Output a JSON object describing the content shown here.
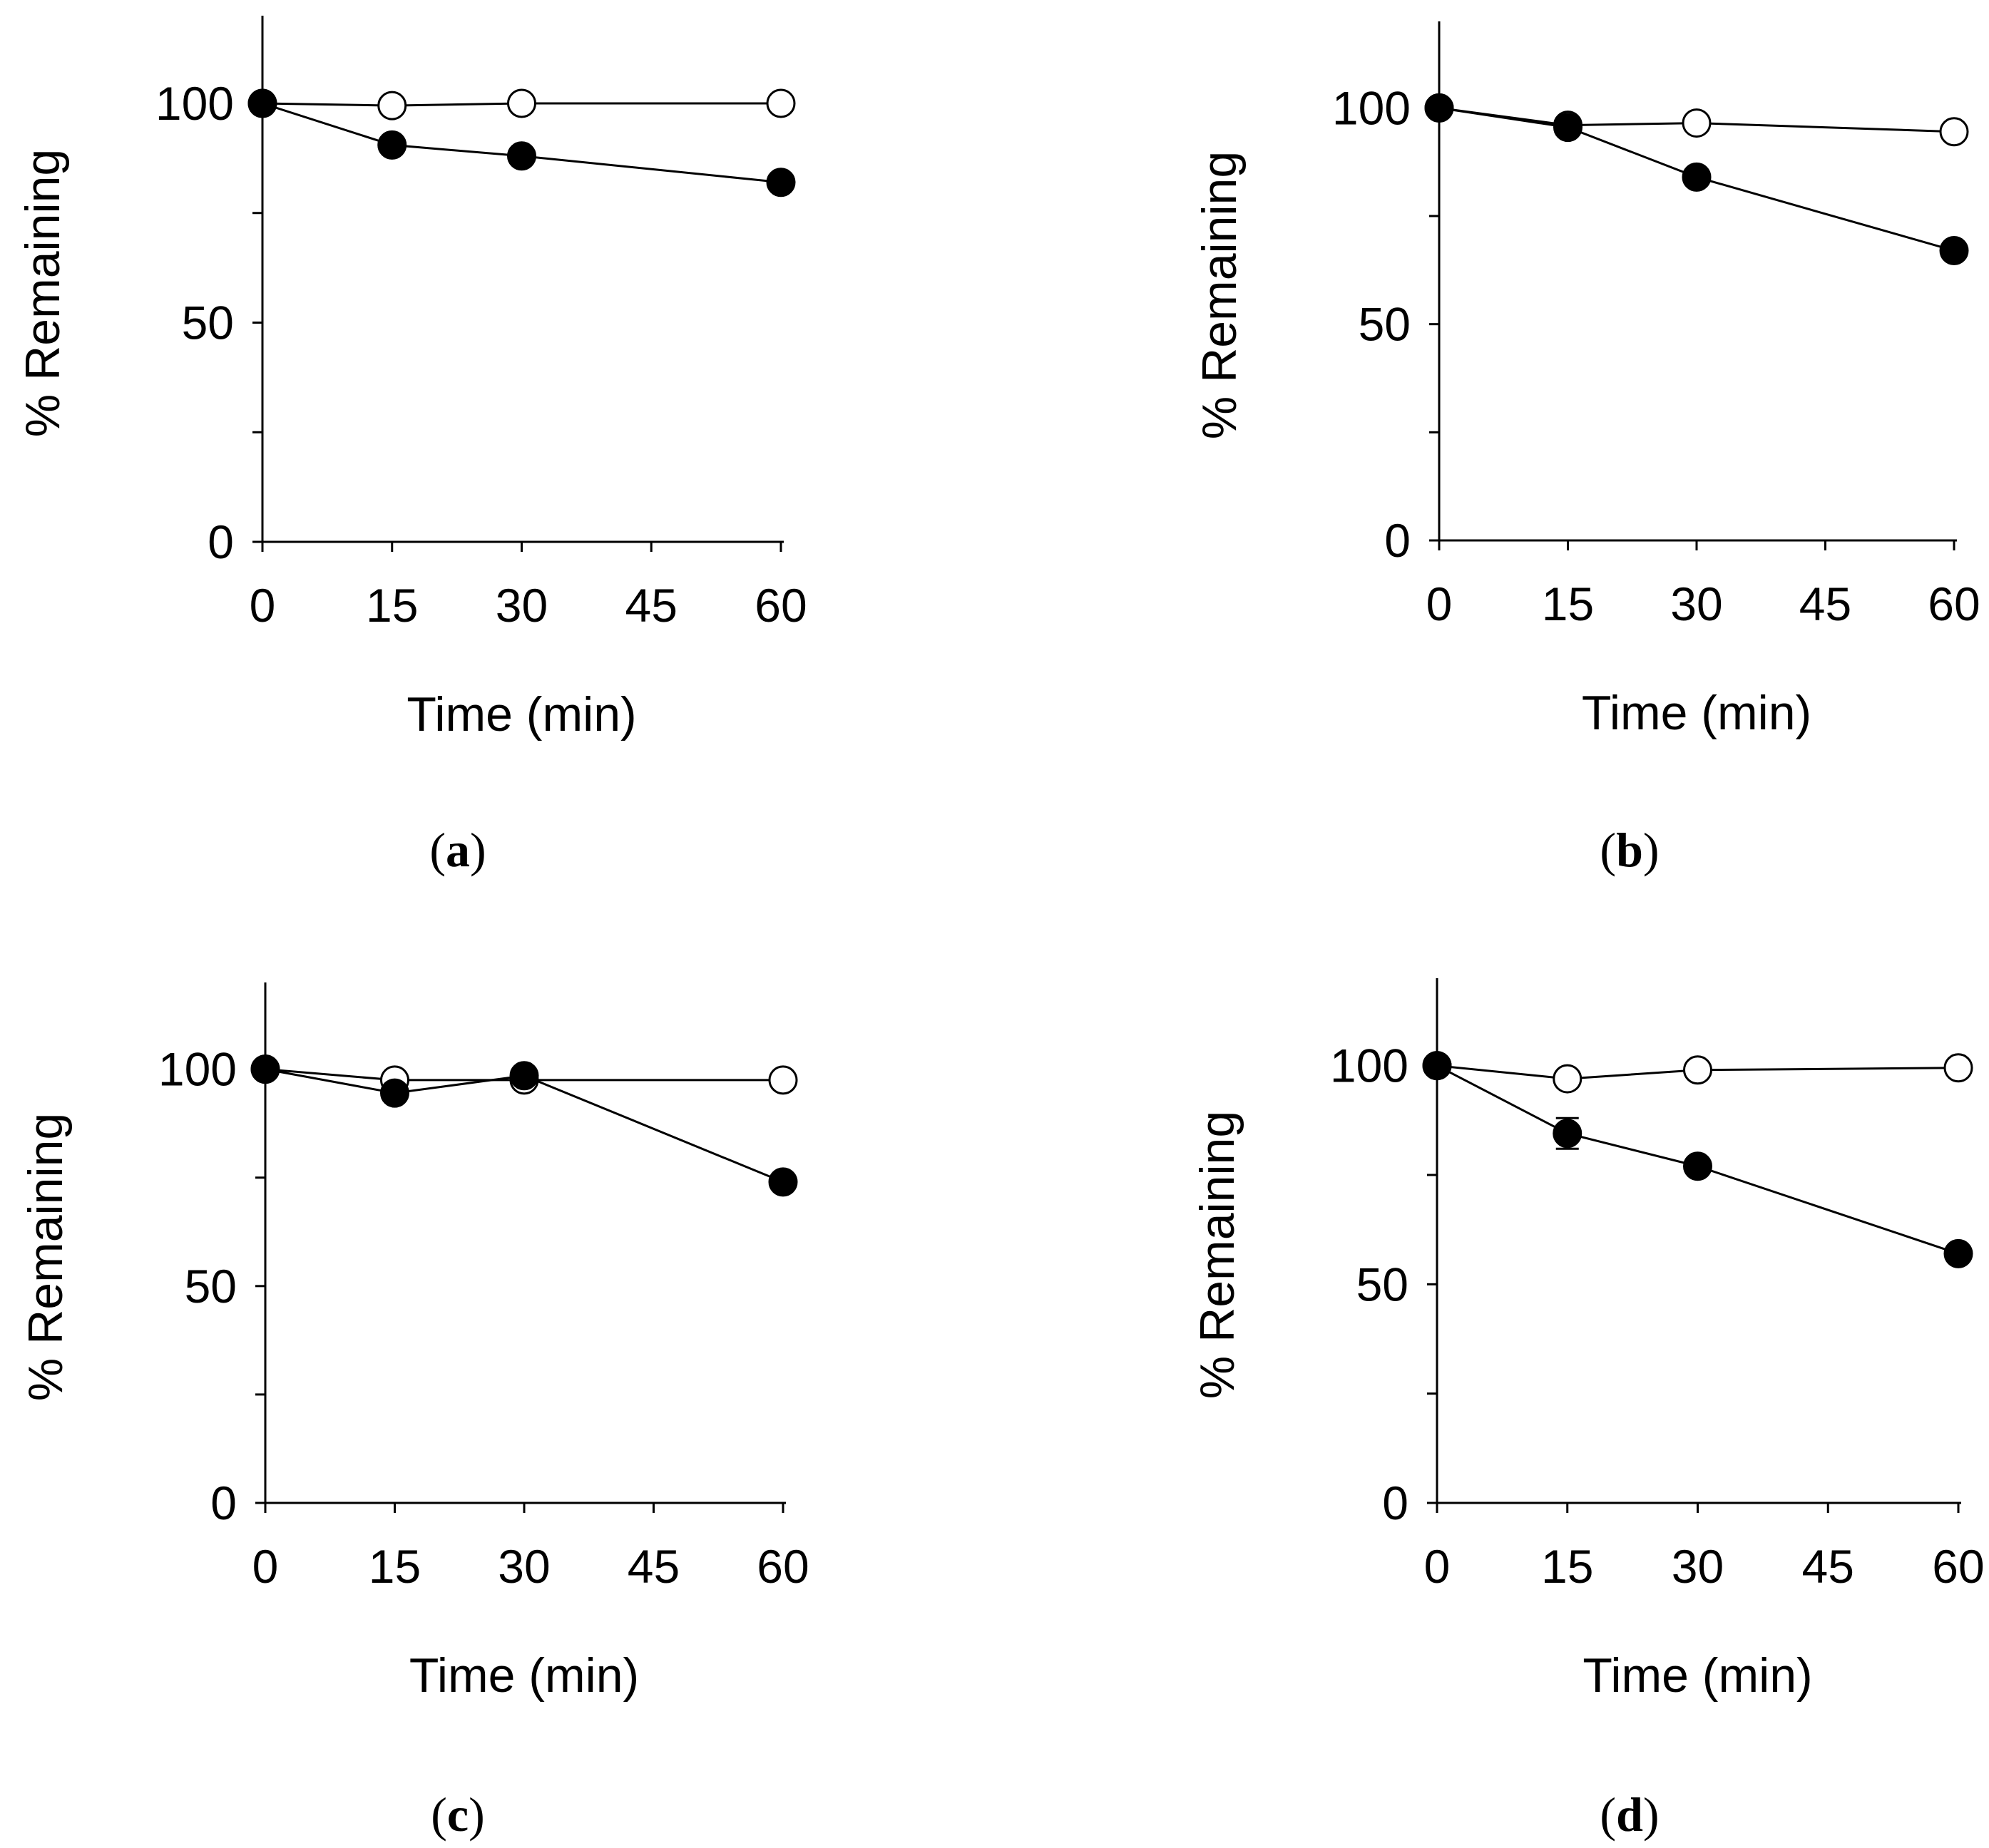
{
  "chart_data": [
    {
      "panel": "a",
      "type": "line",
      "caption": "(a)",
      "caption_open": "(",
      "caption_letter": "a",
      "caption_close": ")",
      "xlabel": "Time (min)",
      "ylabel": "% Remaining",
      "xlim": [
        0,
        60
      ],
      "ylim": [
        0,
        120
      ],
      "xticks": [
        0,
        15,
        30,
        45,
        60
      ],
      "yticks": [
        0,
        50,
        100
      ],
      "y_minor_ticks": [
        25,
        75
      ],
      "x": [
        0,
        15,
        30,
        60
      ],
      "series": [
        {
          "marker": "open-circle",
          "values": [
            100,
            99.5,
            100,
            100
          ]
        },
        {
          "marker": "filled-circle",
          "values": [
            100,
            90.5,
            88,
            82
          ]
        }
      ]
    },
    {
      "panel": "b",
      "type": "line",
      "caption": "(b)",
      "caption_open": "(",
      "caption_letter": "b",
      "caption_close": ")",
      "xlabel": "Time (min)",
      "ylabel": "% Remaining",
      "xlim": [
        0,
        60
      ],
      "ylim": [
        0,
        120
      ],
      "xticks": [
        0,
        15,
        30,
        45,
        60
      ],
      "yticks": [
        0,
        50,
        100
      ],
      "y_minor_ticks": [
        25,
        75
      ],
      "x": [
        0,
        15,
        30,
        60
      ],
      "series": [
        {
          "marker": "open-circle",
          "values": [
            100,
            96,
            96.5,
            94.5
          ]
        },
        {
          "marker": "filled-circle",
          "values": [
            100,
            95.5,
            84,
            67
          ]
        }
      ]
    },
    {
      "panel": "c",
      "type": "line",
      "caption": "(c)",
      "caption_open": "(",
      "caption_letter": "c",
      "caption_close": ")",
      "xlabel": "Time (min)",
      "ylabel": "% Remaining",
      "xlim": [
        0,
        60
      ],
      "ylim": [
        0,
        120
      ],
      "xticks": [
        0,
        15,
        30,
        45,
        60
      ],
      "yticks": [
        0,
        50,
        100
      ],
      "y_minor_ticks": [
        25,
        75
      ],
      "x": [
        0,
        15,
        30,
        60
      ],
      "series": [
        {
          "marker": "open-circle",
          "values": [
            100,
            97.5,
            97.5,
            97.5
          ]
        },
        {
          "marker": "filled-circle",
          "values": [
            100,
            94.5,
            98.5,
            74
          ]
        }
      ]
    },
    {
      "panel": "d",
      "type": "line",
      "caption": "(d)",
      "caption_open": "(",
      "caption_letter": "d",
      "caption_close": ")",
      "xlabel": "Time (min)",
      "ylabel": "% Remaining",
      "xlim": [
        0,
        60
      ],
      "ylim": [
        0,
        120
      ],
      "xticks": [
        0,
        15,
        30,
        45,
        60
      ],
      "yticks": [
        0,
        50,
        100
      ],
      "y_minor_ticks": [
        25,
        75
      ],
      "x": [
        0,
        15,
        30,
        60
      ],
      "series": [
        {
          "marker": "open-circle",
          "values": [
            100,
            97,
            99,
            99.5
          ]
        },
        {
          "marker": "filled-circle",
          "values": [
            100,
            84.5,
            77,
            57
          ],
          "error": [
            0,
            3.5,
            0,
            0
          ]
        }
      ]
    }
  ],
  "colors": {
    "axis": "#000000",
    "filled_marker": "#000000",
    "open_marker_fill": "#ffffff",
    "line": "#000000"
  }
}
